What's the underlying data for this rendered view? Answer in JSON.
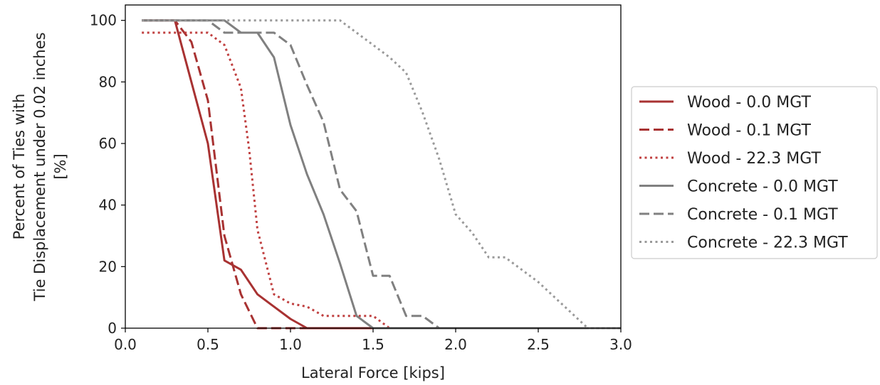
{
  "chart_data": {
    "type": "line",
    "xlabel": "Lateral Force [kips]",
    "ylabel_lines": [
      "Percent of Ties with",
      "Tie Displacement under 0.02 inches",
      "[%]"
    ],
    "xlim": [
      0.0,
      3.0
    ],
    "ylim": [
      0,
      105
    ],
    "xticks": [
      0.0,
      0.5,
      1.0,
      1.5,
      2.0,
      2.5,
      3.0
    ],
    "xtick_labels": [
      "0.0",
      "0.5",
      "1.0",
      "1.5",
      "2.0",
      "2.5",
      "3.0"
    ],
    "yticks": [
      0,
      20,
      40,
      60,
      80,
      100
    ],
    "ytick_labels": [
      "0",
      "20",
      "40",
      "60",
      "80",
      "100"
    ],
    "grid": false,
    "legend_position": "right, outside plot",
    "series": [
      {
        "name": "Wood - 0.0 MGT",
        "color": "#a83232",
        "style": "solid",
        "x": [
          0.1,
          0.3,
          0.4,
          0.5,
          0.6,
          0.7,
          0.8,
          0.9,
          1.0,
          1.1,
          1.2,
          3.0
        ],
        "y": [
          100,
          100,
          80,
          60,
          22,
          19,
          11,
          7,
          3,
          0,
          0,
          0
        ]
      },
      {
        "name": "Wood - 0.1 MGT",
        "color": "#a83232",
        "style": "dashed",
        "x": [
          0.1,
          0.3,
          0.4,
          0.5,
          0.6,
          0.7,
          0.8,
          0.9,
          3.0
        ],
        "y": [
          100,
          100,
          93,
          74,
          30,
          11,
          0,
          0,
          0
        ]
      },
      {
        "name": "Wood - 22.3 MGT",
        "color": "#c04040",
        "style": "dotted",
        "x": [
          0.1,
          0.5,
          0.6,
          0.7,
          0.75,
          0.8,
          0.9,
          1.0,
          1.1,
          1.2,
          1.3,
          1.4,
          1.5,
          1.6,
          3.0
        ],
        "y": [
          96,
          96,
          92,
          78,
          58,
          32,
          11,
          8,
          7,
          4,
          4,
          4,
          4,
          0,
          0
        ]
      },
      {
        "name": "Concrete - 0.0 MGT",
        "color": "#808080",
        "style": "solid",
        "x": [
          0.1,
          0.6,
          0.7,
          0.8,
          0.9,
          1.0,
          1.1,
          1.2,
          1.3,
          1.4,
          1.5,
          3.0
        ],
        "y": [
          100,
          100,
          96,
          96,
          88,
          66,
          50,
          37,
          21,
          4,
          0,
          0
        ]
      },
      {
        "name": "Concrete - 0.1 MGT",
        "color": "#808080",
        "style": "dashed",
        "x": [
          0.1,
          0.5,
          0.6,
          0.7,
          0.9,
          1.0,
          1.1,
          1.2,
          1.3,
          1.4,
          1.5,
          1.6,
          1.7,
          1.8,
          1.9,
          3.0
        ],
        "y": [
          100,
          100,
          96,
          96,
          96,
          92,
          79,
          67,
          45,
          38,
          17,
          17,
          4,
          4,
          0,
          0
        ]
      },
      {
        "name": "Concrete - 22.3 MGT",
        "color": "#9a9a9a",
        "style": "dotted",
        "x": [
          0.1,
          1.3,
          1.4,
          1.5,
          1.6,
          1.7,
          1.8,
          1.9,
          2.0,
          2.1,
          2.2,
          2.3,
          2.4,
          2.5,
          2.6,
          2.7,
          2.8,
          3.0
        ],
        "y": [
          100,
          100,
          96,
          92,
          88,
          83,
          70,
          55,
          37,
          31,
          23,
          23,
          19,
          15,
          10,
          5,
          0,
          0
        ]
      }
    ]
  }
}
